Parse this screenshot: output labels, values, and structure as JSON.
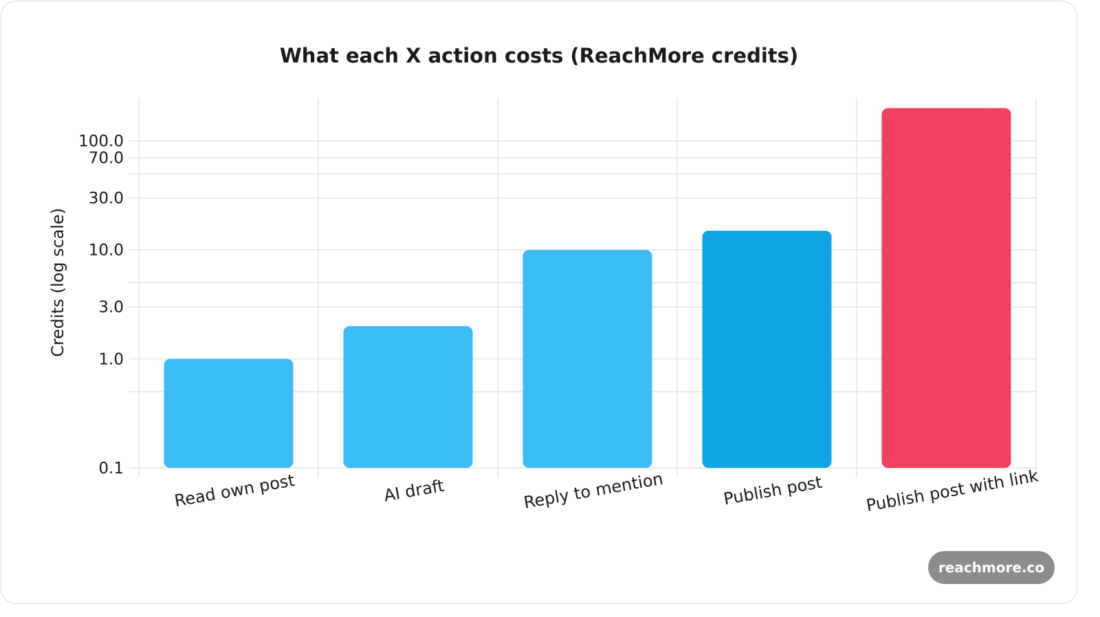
{
  "chart_data": {
    "type": "bar",
    "title": "What each X action costs (ReachMore credits)",
    "ylabel": "Credits (log scale)",
    "xlabel": "",
    "yscale": "log",
    "ylim": [
      0.1,
      250
    ],
    "yticks": [
      0.1,
      1.0,
      3.0,
      10.0,
      30.0,
      70.0,
      100.0
    ],
    "ytick_labels": [
      "0.1",
      "1.0",
      "3.0",
      "10.0",
      "30.0",
      "70.0",
      "100.0"
    ],
    "categories": [
      "Read own post",
      "AI draft",
      "Reply to mention",
      "Publish post",
      "Publish post with link"
    ],
    "values": [
      1,
      2,
      10,
      15,
      200
    ],
    "colors": [
      "#3bbcf7",
      "#3bbcf7",
      "#3bbcf7",
      "#10a6e6",
      "#f2415e"
    ],
    "grid": true,
    "legend": "none"
  },
  "badge": {
    "label": "reachmore.co"
  }
}
